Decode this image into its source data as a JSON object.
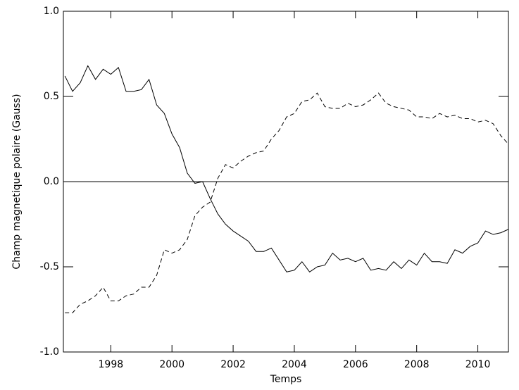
{
  "chart_data": {
    "type": "line",
    "xlabel": "Temps",
    "ylabel": "Champ magnetique polaire (Gauss)",
    "x": [
      1996.5,
      1996.75,
      1997.0,
      1997.25,
      1997.5,
      1997.75,
      1998.0,
      1998.25,
      1998.5,
      1998.75,
      1999.0,
      1999.25,
      1999.5,
      1999.75,
      2000.0,
      2000.25,
      2000.5,
      2000.75,
      2001.0,
      2001.25,
      2001.5,
      2001.75,
      2002.0,
      2002.25,
      2002.5,
      2002.75,
      2003.0,
      2003.25,
      2003.5,
      2003.75,
      2004.0,
      2004.25,
      2004.5,
      2004.75,
      2005.0,
      2005.25,
      2005.5,
      2005.75,
      2006.0,
      2006.25,
      2006.5,
      2006.75,
      2007.0,
      2007.25,
      2007.5,
      2007.75,
      2008.0,
      2008.25,
      2008.5,
      2008.75,
      2009.0,
      2009.25,
      2009.5,
      2009.75,
      2010.0,
      2010.25,
      2010.5,
      2010.75,
      2011.0
    ],
    "series": [
      {
        "color": "#000000",
        "dashed": false,
        "values": [
          0.62,
          0.53,
          0.58,
          0.68,
          0.6,
          0.66,
          0.63,
          0.67,
          0.53,
          0.53,
          0.54,
          0.6,
          0.45,
          0.4,
          0.28,
          0.2,
          0.05,
          -0.01,
          0.0,
          -0.1,
          -0.19,
          -0.25,
          -0.29,
          -0.32,
          -0.35,
          -0.41,
          -0.41,
          -0.39,
          -0.46,
          -0.53,
          -0.52,
          -0.47,
          -0.53,
          -0.5,
          -0.49,
          -0.42,
          -0.46,
          -0.45,
          -0.47,
          -0.45,
          -0.52,
          -0.51,
          -0.52,
          -0.47,
          -0.51,
          -0.46,
          -0.49,
          -0.42,
          -0.47,
          -0.47,
          -0.48,
          -0.4,
          -0.42,
          -0.38,
          -0.36,
          -0.29,
          -0.31,
          -0.3,
          -0.28
        ]
      },
      {
        "color": "#000000",
        "dashed": true,
        "values": [
          -0.77,
          -0.77,
          -0.72,
          -0.7,
          -0.67,
          -0.62,
          -0.7,
          -0.7,
          -0.67,
          -0.66,
          -0.62,
          -0.62,
          -0.55,
          -0.4,
          -0.42,
          -0.4,
          -0.34,
          -0.2,
          -0.15,
          -0.12,
          0.02,
          0.1,
          0.08,
          0.12,
          0.15,
          0.17,
          0.18,
          0.25,
          0.3,
          0.38,
          0.4,
          0.47,
          0.48,
          0.52,
          0.44,
          0.43,
          0.43,
          0.46,
          0.44,
          0.45,
          0.48,
          0.52,
          0.46,
          0.44,
          0.43,
          0.42,
          0.38,
          0.38,
          0.37,
          0.4,
          0.38,
          0.39,
          0.37,
          0.37,
          0.35,
          0.36,
          0.34,
          0.27,
          0.22
        ]
      }
    ],
    "hline": 0,
    "xlim": [
      1996.45,
      2011.0
    ],
    "xticks": [
      1998,
      2000,
      2002,
      2004,
      2006,
      2008,
      2010
    ],
    "ylim": [
      -1,
      1
    ],
    "yticks": [
      {
        "value": -1,
        "label": "-1.0"
      },
      -0.5,
      {
        "value": 0,
        "label": "0.0"
      },
      0.5,
      {
        "value": 1,
        "label": "1.0"
      }
    ]
  }
}
